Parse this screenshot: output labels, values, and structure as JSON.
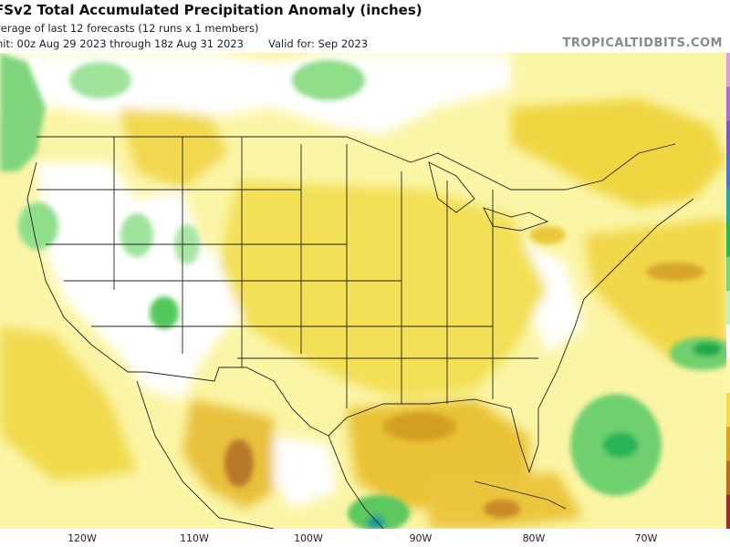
{
  "header": {
    "title": "FSv2 Total Accumulated Precipitation Anomaly (inches)",
    "subtitle": "verage of last 12 forecasts (12 runs x 1 members)",
    "init_text": "nit: 00z Aug 29 2023 through 18z Aug 31 2023",
    "valid_text": "Valid for: Sep 2023",
    "brand": "TROPICALTIDBITS.COM"
  },
  "axis": {
    "longitude_ticks": [
      "120W",
      "110W",
      "100W",
      "90W",
      "80W",
      "70W"
    ]
  },
  "colors": {
    "dry_dark": "#b0701e",
    "dry_mid": "#d9a520",
    "dry_light": "#f2dc4a",
    "dry_faint": "#fbf6a8",
    "neutral": "#ffffff",
    "wet_light": "#9fe39c",
    "wet_mid": "#52c85a",
    "wet_dark": "#1ca84d",
    "wet_deep": "#1a9a9a",
    "border": "#222222"
  },
  "colorbar": {
    "segments": [
      "#9e2a2a",
      "#b0701e",
      "#d9a520",
      "#f2dc4a",
      "#fbf6a8",
      "#ffffff",
      "#c4f0c0",
      "#7ad67a",
      "#2cb45a",
      "#2aa6a6",
      "#4a78c8",
      "#7a5ac0",
      "#b06ad0",
      "#d8a0e8"
    ]
  }
}
